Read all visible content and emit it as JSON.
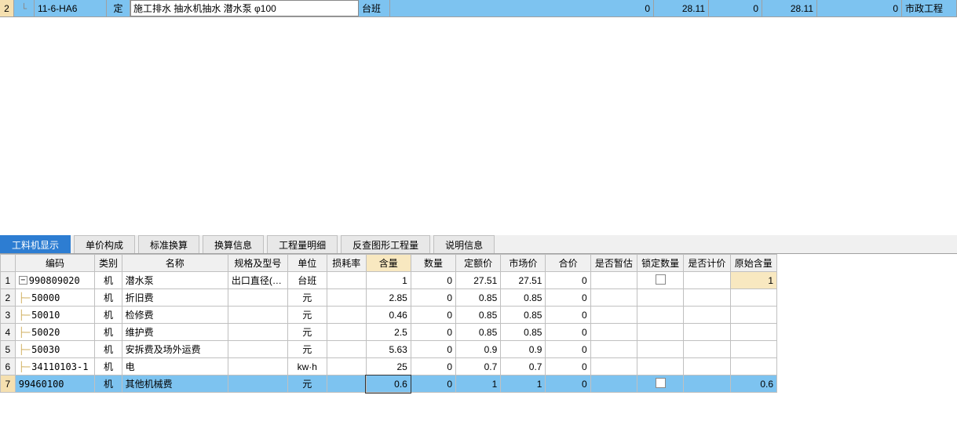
{
  "topRow": {
    "rowNum": "2",
    "code": "11-6-HA6",
    "type": "定",
    "name": "施工排水 抽水机抽水 潜水泵 φ100",
    "unit": "台班",
    "col1": "0",
    "col2": "28.11",
    "col3": "0",
    "col4": "28.11",
    "col5": "0",
    "project": "市政工程"
  },
  "tabs": [
    {
      "label": "工料机显示",
      "active": true
    },
    {
      "label": "单价构成",
      "active": false
    },
    {
      "label": "标准换算",
      "active": false
    },
    {
      "label": "换算信息",
      "active": false
    },
    {
      "label": "工程量明细",
      "active": false
    },
    {
      "label": "反查图形工程量",
      "active": false
    },
    {
      "label": "说明信息",
      "active": false
    }
  ],
  "grid": {
    "headers": [
      "",
      "编码",
      "类别",
      "名称",
      "规格及型号",
      "单位",
      "损耗率",
      "含量",
      "数量",
      "定额价",
      "市场价",
      "合价",
      "是否暂估",
      "锁定数量",
      "是否计价",
      "原始含量"
    ],
    "rows": [
      {
        "n": "1",
        "expand": true,
        "code": "990809020",
        "type": "机",
        "name": "潜水泵",
        "spec": "出口直径(…",
        "unit": "台班",
        "loss": "",
        "content": "1",
        "qty": "0",
        "price": "27.51",
        "market": "27.51",
        "total": "0",
        "temp": "",
        "lock": "checkbox",
        "calc": "",
        "orig": "1",
        "origHighlight": true
      },
      {
        "n": "2",
        "branch": true,
        "code": "50000",
        "type": "机",
        "name": "折旧费",
        "spec": "",
        "unit": "元",
        "loss": "",
        "content": "2.85",
        "qty": "0",
        "price": "0.85",
        "market": "0.85",
        "total": "0",
        "temp": "",
        "lock": "",
        "calc": "",
        "orig": ""
      },
      {
        "n": "3",
        "branch": true,
        "code": "50010",
        "type": "机",
        "name": "检修费",
        "spec": "",
        "unit": "元",
        "loss": "",
        "content": "0.46",
        "qty": "0",
        "price": "0.85",
        "market": "0.85",
        "total": "0",
        "temp": "",
        "lock": "",
        "calc": "",
        "orig": ""
      },
      {
        "n": "4",
        "branch": true,
        "code": "50020",
        "type": "机",
        "name": "维护费",
        "spec": "",
        "unit": "元",
        "loss": "",
        "content": "2.5",
        "qty": "0",
        "price": "0.85",
        "market": "0.85",
        "total": "0",
        "temp": "",
        "lock": "",
        "calc": "",
        "orig": ""
      },
      {
        "n": "5",
        "branch": true,
        "code": "50030",
        "type": "机",
        "name": "安拆费及场外运费",
        "spec": "",
        "unit": "元",
        "loss": "",
        "content": "5.63",
        "qty": "0",
        "price": "0.9",
        "market": "0.9",
        "total": "0",
        "temp": "",
        "lock": "",
        "calc": "",
        "orig": ""
      },
      {
        "n": "6",
        "branch": true,
        "code": "34110103-1",
        "type": "机",
        "name": "电",
        "spec": "",
        "unit": "kw·h",
        "loss": "",
        "content": "25",
        "qty": "0",
        "price": "0.7",
        "market": "0.7",
        "total": "0",
        "temp": "",
        "lock": "",
        "calc": "",
        "orig": ""
      },
      {
        "n": "7",
        "selected": true,
        "code": "99460100",
        "type": "机",
        "name": "其他机械费",
        "spec": "",
        "unit": "元",
        "loss": "",
        "content": "0.6",
        "activeCell": true,
        "qty": "0",
        "price": "1",
        "market": "1",
        "total": "0",
        "temp": "",
        "lock": "checkbox",
        "calc": "",
        "orig": "0.6"
      }
    ]
  }
}
